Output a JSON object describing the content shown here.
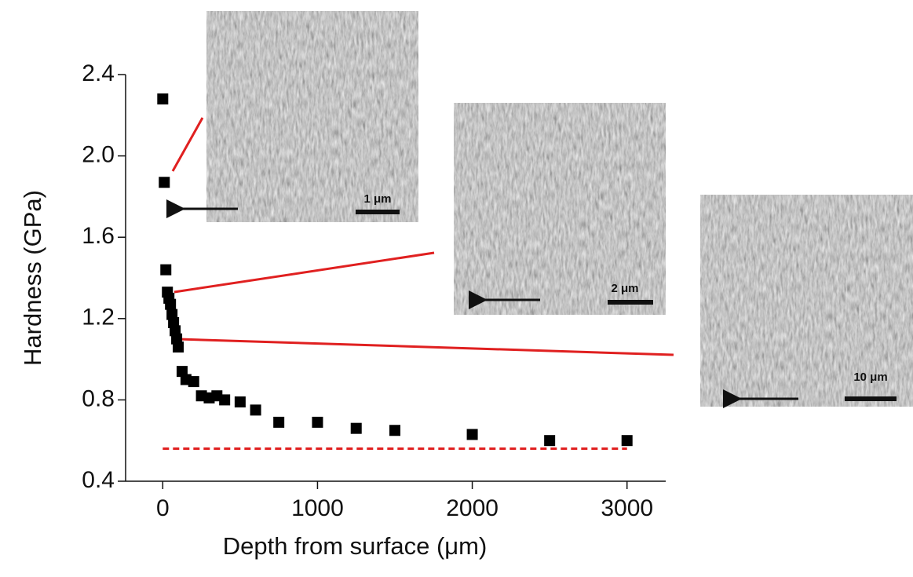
{
  "chart_data": {
    "type": "scatter",
    "x_label": "Depth from surface (μm)",
    "y_label": "Hardness (GPa)",
    "x": [
      0,
      10,
      20,
      30,
      40,
      50,
      60,
      70,
      80,
      90,
      100,
      125,
      150,
      200,
      250,
      300,
      350,
      400,
      500,
      600,
      750,
      1000,
      1250,
      1500,
      2000,
      2500,
      3000
    ],
    "values": [
      2.28,
      1.87,
      1.44,
      1.33,
      1.3,
      1.27,
      1.22,
      1.18,
      1.14,
      1.1,
      1.06,
      0.94,
      0.9,
      0.89,
      0.82,
      0.81,
      0.82,
      0.8,
      0.79,
      0.75,
      0.69,
      0.69,
      0.66,
      0.65,
      0.63,
      0.6,
      0.6
    ],
    "color": "#000000",
    "xlim": [
      -240,
      3250
    ],
    "ylim": [
      0.4,
      2.4
    ],
    "xticks": [
      0,
      1000,
      2000,
      3000
    ],
    "yticks": [
      0.4,
      0.8,
      1.2,
      1.6,
      {
        "value": 2,
        "label": "2.0"
      },
      2.4
    ],
    "reference_line": {
      "value": 0.56,
      "color": "#e02020"
    },
    "insets": [
      {
        "scale_label": "1 μm"
      },
      {
        "scale_label": "2 μm"
      },
      {
        "scale_label": "10 μm"
      }
    ]
  }
}
